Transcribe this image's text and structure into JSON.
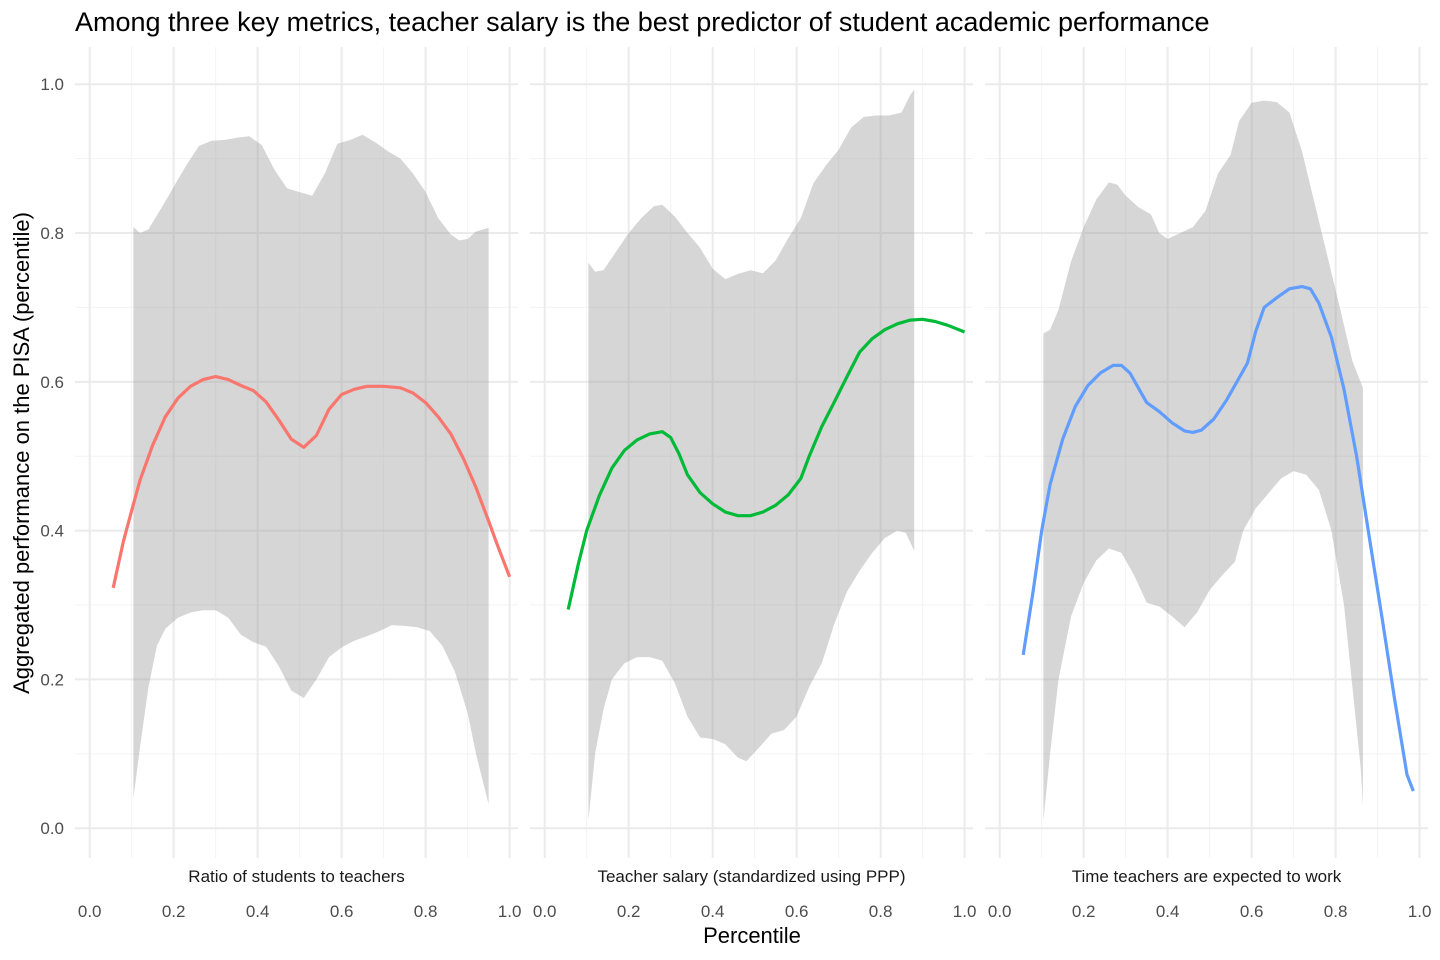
{
  "chart_data": {
    "type": "line",
    "title": "Among three key metrics, teacher salary is the best predictor of student academic performance",
    "xlabel": "Percentile",
    "ylabel": "Aggregated performance on the PISA (percentile)",
    "xlim": [
      -0.035,
      1.02
    ],
    "ylim": [
      -0.04,
      1.05
    ],
    "x_ticks": [
      "0.0",
      "0.2",
      "0.4",
      "0.6",
      "0.8",
      "1.0"
    ],
    "y_ticks": [
      "0.0",
      "0.2",
      "0.4",
      "0.6",
      "0.8",
      "1.0"
    ],
    "grid": true,
    "legend": "none",
    "panels": [
      {
        "label": "Ratio of students to teachers",
        "color": "#F8766D",
        "line": [
          [
            0.056,
            0.323
          ],
          [
            0.08,
            0.385
          ],
          [
            0.1,
            0.427
          ],
          [
            0.12,
            0.468
          ],
          [
            0.15,
            0.515
          ],
          [
            0.18,
            0.553
          ],
          [
            0.21,
            0.578
          ],
          [
            0.24,
            0.594
          ],
          [
            0.27,
            0.603
          ],
          [
            0.3,
            0.607
          ],
          [
            0.33,
            0.603
          ],
          [
            0.36,
            0.595
          ],
          [
            0.39,
            0.588
          ],
          [
            0.42,
            0.573
          ],
          [
            0.45,
            0.549
          ],
          [
            0.48,
            0.523
          ],
          [
            0.51,
            0.512
          ],
          [
            0.54,
            0.528
          ],
          [
            0.57,
            0.563
          ],
          [
            0.6,
            0.583
          ],
          [
            0.63,
            0.59
          ],
          [
            0.66,
            0.594
          ],
          [
            0.7,
            0.594
          ],
          [
            0.74,
            0.592
          ],
          [
            0.77,
            0.585
          ],
          [
            0.8,
            0.572
          ],
          [
            0.83,
            0.553
          ],
          [
            0.86,
            0.53
          ],
          [
            0.89,
            0.497
          ],
          [
            0.92,
            0.458
          ],
          [
            0.95,
            0.413
          ],
          [
            0.97,
            0.382
          ],
          [
            1.0,
            0.338
          ]
        ],
        "upper": [
          [
            0.104,
            0.808
          ],
          [
            0.12,
            0.8
          ],
          [
            0.14,
            0.805
          ],
          [
            0.17,
            0.833
          ],
          [
            0.2,
            0.862
          ],
          [
            0.23,
            0.891
          ],
          [
            0.26,
            0.917
          ],
          [
            0.29,
            0.924
          ],
          [
            0.32,
            0.925
          ],
          [
            0.35,
            0.928
          ],
          [
            0.38,
            0.93
          ],
          [
            0.41,
            0.918
          ],
          [
            0.44,
            0.885
          ],
          [
            0.47,
            0.86
          ],
          [
            0.5,
            0.855
          ],
          [
            0.53,
            0.85
          ],
          [
            0.56,
            0.88
          ],
          [
            0.59,
            0.92
          ],
          [
            0.62,
            0.925
          ],
          [
            0.65,
            0.932
          ],
          [
            0.68,
            0.922
          ],
          [
            0.71,
            0.91
          ],
          [
            0.74,
            0.9
          ],
          [
            0.77,
            0.88
          ],
          [
            0.8,
            0.855
          ],
          [
            0.83,
            0.82
          ],
          [
            0.86,
            0.798
          ],
          [
            0.88,
            0.79
          ],
          [
            0.9,
            0.792
          ],
          [
            0.92,
            0.802
          ],
          [
            0.95,
            0.807
          ]
        ],
        "lower": [
          [
            0.104,
            0.04
          ],
          [
            0.12,
            0.11
          ],
          [
            0.14,
            0.19
          ],
          [
            0.16,
            0.245
          ],
          [
            0.18,
            0.268
          ],
          [
            0.21,
            0.283
          ],
          [
            0.24,
            0.29
          ],
          [
            0.27,
            0.293
          ],
          [
            0.3,
            0.293
          ],
          [
            0.33,
            0.283
          ],
          [
            0.36,
            0.26
          ],
          [
            0.39,
            0.25
          ],
          [
            0.42,
            0.244
          ],
          [
            0.45,
            0.218
          ],
          [
            0.48,
            0.185
          ],
          [
            0.51,
            0.175
          ],
          [
            0.54,
            0.2
          ],
          [
            0.57,
            0.23
          ],
          [
            0.6,
            0.243
          ],
          [
            0.63,
            0.252
          ],
          [
            0.66,
            0.258
          ],
          [
            0.69,
            0.265
          ],
          [
            0.72,
            0.273
          ],
          [
            0.75,
            0.272
          ],
          [
            0.78,
            0.27
          ],
          [
            0.81,
            0.265
          ],
          [
            0.84,
            0.245
          ],
          [
            0.87,
            0.21
          ],
          [
            0.9,
            0.155
          ],
          [
            0.92,
            0.1
          ],
          [
            0.94,
            0.055
          ],
          [
            0.95,
            0.032
          ]
        ]
      },
      {
        "label": "Teacher salary (standardized using PPP)",
        "color": "#00BA38",
        "line": [
          [
            0.056,
            0.294
          ],
          [
            0.08,
            0.355
          ],
          [
            0.1,
            0.4
          ],
          [
            0.13,
            0.447
          ],
          [
            0.16,
            0.484
          ],
          [
            0.19,
            0.508
          ],
          [
            0.22,
            0.522
          ],
          [
            0.25,
            0.53
          ],
          [
            0.28,
            0.533
          ],
          [
            0.3,
            0.525
          ],
          [
            0.32,
            0.503
          ],
          [
            0.34,
            0.475
          ],
          [
            0.37,
            0.451
          ],
          [
            0.4,
            0.436
          ],
          [
            0.43,
            0.425
          ],
          [
            0.46,
            0.42
          ],
          [
            0.49,
            0.42
          ],
          [
            0.52,
            0.425
          ],
          [
            0.55,
            0.434
          ],
          [
            0.58,
            0.448
          ],
          [
            0.61,
            0.47
          ],
          [
            0.63,
            0.5
          ],
          [
            0.66,
            0.54
          ],
          [
            0.69,
            0.573
          ],
          [
            0.72,
            0.607
          ],
          [
            0.75,
            0.64
          ],
          [
            0.78,
            0.658
          ],
          [
            0.81,
            0.67
          ],
          [
            0.84,
            0.678
          ],
          [
            0.87,
            0.683
          ],
          [
            0.9,
            0.684
          ],
          [
            0.93,
            0.681
          ],
          [
            0.96,
            0.676
          ],
          [
            1.0,
            0.667
          ]
        ],
        "upper": [
          [
            0.104,
            0.76
          ],
          [
            0.12,
            0.748
          ],
          [
            0.14,
            0.75
          ],
          [
            0.17,
            0.775
          ],
          [
            0.2,
            0.8
          ],
          [
            0.23,
            0.82
          ],
          [
            0.26,
            0.836
          ],
          [
            0.28,
            0.838
          ],
          [
            0.31,
            0.822
          ],
          [
            0.34,
            0.8
          ],
          [
            0.37,
            0.78
          ],
          [
            0.4,
            0.752
          ],
          [
            0.43,
            0.738
          ],
          [
            0.46,
            0.745
          ],
          [
            0.49,
            0.75
          ],
          [
            0.52,
            0.746
          ],
          [
            0.55,
            0.763
          ],
          [
            0.58,
            0.793
          ],
          [
            0.61,
            0.82
          ],
          [
            0.64,
            0.867
          ],
          [
            0.67,
            0.891
          ],
          [
            0.7,
            0.912
          ],
          [
            0.73,
            0.942
          ],
          [
            0.76,
            0.956
          ],
          [
            0.79,
            0.958
          ],
          [
            0.82,
            0.958
          ],
          [
            0.85,
            0.962
          ],
          [
            0.87,
            0.985
          ],
          [
            0.88,
            0.993
          ]
        ],
        "lower": [
          [
            0.104,
            0.01
          ],
          [
            0.12,
            0.1
          ],
          [
            0.14,
            0.16
          ],
          [
            0.16,
            0.2
          ],
          [
            0.19,
            0.222
          ],
          [
            0.22,
            0.23
          ],
          [
            0.25,
            0.23
          ],
          [
            0.28,
            0.225
          ],
          [
            0.31,
            0.195
          ],
          [
            0.34,
            0.15
          ],
          [
            0.37,
            0.122
          ],
          [
            0.4,
            0.12
          ],
          [
            0.43,
            0.113
          ],
          [
            0.46,
            0.095
          ],
          [
            0.48,
            0.09
          ],
          [
            0.51,
            0.108
          ],
          [
            0.54,
            0.127
          ],
          [
            0.57,
            0.132
          ],
          [
            0.6,
            0.15
          ],
          [
            0.63,
            0.19
          ],
          [
            0.66,
            0.222
          ],
          [
            0.69,
            0.275
          ],
          [
            0.72,
            0.318
          ],
          [
            0.75,
            0.346
          ],
          [
            0.78,
            0.37
          ],
          [
            0.81,
            0.39
          ],
          [
            0.84,
            0.4
          ],
          [
            0.86,
            0.397
          ],
          [
            0.87,
            0.385
          ],
          [
            0.88,
            0.373
          ]
        ]
      },
      {
        "label": "Time teachers are expected to work",
        "color": "#619CFF",
        "line": [
          [
            0.056,
            0.233
          ],
          [
            0.08,
            0.32
          ],
          [
            0.1,
            0.4
          ],
          [
            0.12,
            0.462
          ],
          [
            0.15,
            0.523
          ],
          [
            0.18,
            0.567
          ],
          [
            0.21,
            0.595
          ],
          [
            0.24,
            0.612
          ],
          [
            0.27,
            0.622
          ],
          [
            0.29,
            0.622
          ],
          [
            0.31,
            0.612
          ],
          [
            0.33,
            0.592
          ],
          [
            0.35,
            0.572
          ],
          [
            0.38,
            0.56
          ],
          [
            0.41,
            0.545
          ],
          [
            0.44,
            0.534
          ],
          [
            0.46,
            0.532
          ],
          [
            0.48,
            0.535
          ],
          [
            0.51,
            0.55
          ],
          [
            0.54,
            0.575
          ],
          [
            0.57,
            0.605
          ],
          [
            0.59,
            0.625
          ],
          [
            0.61,
            0.668
          ],
          [
            0.63,
            0.7
          ],
          [
            0.66,
            0.713
          ],
          [
            0.69,
            0.725
          ],
          [
            0.72,
            0.728
          ],
          [
            0.74,
            0.725
          ],
          [
            0.76,
            0.706
          ],
          [
            0.79,
            0.66
          ],
          [
            0.82,
            0.59
          ],
          [
            0.85,
            0.5
          ],
          [
            0.88,
            0.392
          ],
          [
            0.91,
            0.285
          ],
          [
            0.94,
            0.175
          ],
          [
            0.97,
            0.072
          ],
          [
            0.985,
            0.05
          ]
        ],
        "upper": [
          [
            0.104,
            0.665
          ],
          [
            0.12,
            0.67
          ],
          [
            0.14,
            0.697
          ],
          [
            0.17,
            0.762
          ],
          [
            0.2,
            0.808
          ],
          [
            0.23,
            0.845
          ],
          [
            0.26,
            0.868
          ],
          [
            0.28,
            0.865
          ],
          [
            0.3,
            0.85
          ],
          [
            0.33,
            0.835
          ],
          [
            0.36,
            0.825
          ],
          [
            0.38,
            0.8
          ],
          [
            0.4,
            0.792
          ],
          [
            0.43,
            0.8
          ],
          [
            0.46,
            0.808
          ],
          [
            0.49,
            0.83
          ],
          [
            0.52,
            0.88
          ],
          [
            0.55,
            0.905
          ],
          [
            0.57,
            0.95
          ],
          [
            0.6,
            0.975
          ],
          [
            0.63,
            0.978
          ],
          [
            0.66,
            0.976
          ],
          [
            0.69,
            0.962
          ],
          [
            0.72,
            0.91
          ],
          [
            0.75,
            0.84
          ],
          [
            0.78,
            0.77
          ],
          [
            0.81,
            0.7
          ],
          [
            0.84,
            0.628
          ],
          [
            0.865,
            0.592
          ]
        ],
        "lower": [
          [
            0.104,
            0.01
          ],
          [
            0.12,
            0.1
          ],
          [
            0.14,
            0.2
          ],
          [
            0.17,
            0.285
          ],
          [
            0.2,
            0.33
          ],
          [
            0.23,
            0.36
          ],
          [
            0.26,
            0.376
          ],
          [
            0.29,
            0.37
          ],
          [
            0.32,
            0.34
          ],
          [
            0.35,
            0.303
          ],
          [
            0.38,
            0.298
          ],
          [
            0.41,
            0.285
          ],
          [
            0.44,
            0.27
          ],
          [
            0.47,
            0.29
          ],
          [
            0.5,
            0.32
          ],
          [
            0.53,
            0.34
          ],
          [
            0.56,
            0.358
          ],
          [
            0.58,
            0.4
          ],
          [
            0.61,
            0.43
          ],
          [
            0.64,
            0.45
          ],
          [
            0.67,
            0.47
          ],
          [
            0.7,
            0.48
          ],
          [
            0.73,
            0.475
          ],
          [
            0.76,
            0.455
          ],
          [
            0.79,
            0.4
          ],
          [
            0.82,
            0.3
          ],
          [
            0.84,
            0.19
          ],
          [
            0.86,
            0.08
          ],
          [
            0.865,
            0.03
          ]
        ]
      }
    ]
  }
}
